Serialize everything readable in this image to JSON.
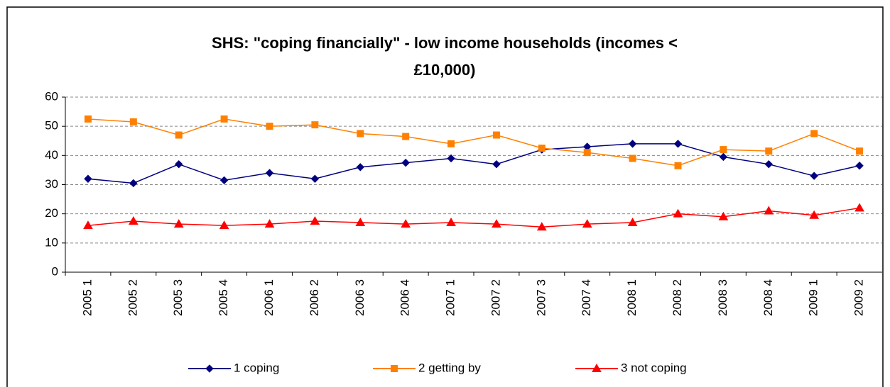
{
  "chart_data": {
    "type": "line",
    "title": [
      "SHS: \"coping financially\" - low income households (incomes <",
      "£10,000)"
    ],
    "categories": [
      "2005 1",
      "2005 2",
      "2005 3",
      "2005 4",
      "2006 1",
      "2006 2",
      "2006 3",
      "2006 4",
      "2007 1",
      "2007 2",
      "2007 3",
      "2007 4",
      "2008 1",
      "2008 2",
      "2008 3",
      "2008 4",
      "2009 1",
      "2009 2"
    ],
    "series": [
      {
        "name": "1 coping",
        "color": "#000080",
        "marker": "diamond",
        "values": [
          32,
          30.5,
          37,
          31.5,
          34,
          32,
          36,
          37.5,
          39,
          37,
          42,
          43,
          44,
          44,
          39.5,
          37,
          33,
          36.5
        ]
      },
      {
        "name": "2 getting by",
        "color": "#ff8000",
        "marker": "square",
        "values": [
          52.5,
          51.5,
          47,
          52.5,
          50,
          50.5,
          47.5,
          46.5,
          44,
          47,
          42.5,
          41,
          39,
          36.5,
          42,
          41.5,
          47.5,
          41.5
        ]
      },
      {
        "name": "3 not coping",
        "color": "#ff0000",
        "marker": "triangle",
        "values": [
          16,
          17.5,
          16.5,
          16,
          16.5,
          17.5,
          17,
          16.5,
          17,
          16.5,
          15.5,
          16.5,
          17,
          20,
          19,
          21,
          19.5,
          22
        ]
      }
    ],
    "ylim": [
      0,
      60
    ],
    "yticks": [
      0,
      10,
      20,
      30,
      40,
      50,
      60
    ],
    "grid": true,
    "legend": "bottom"
  }
}
